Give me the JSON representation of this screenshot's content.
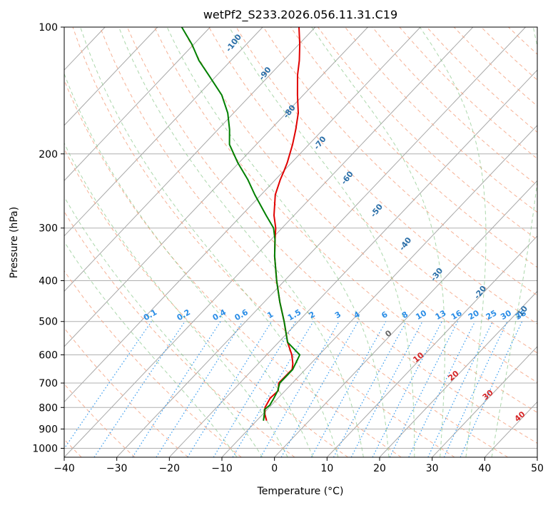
{
  "chart_data": {
    "type": "line",
    "title": "wetPf2_S233.2026.056.11.31.C19",
    "xlabel": "Temperature (°C)",
    "ylabel": "Pressure (hPa)",
    "xlim": [
      -40,
      50
    ],
    "ylim": [
      1050,
      100
    ],
    "x_ticks": [
      "−40",
      "−30",
      "−20",
      "−10",
      "0",
      "10",
      "20",
      "30",
      "40",
      "50"
    ],
    "x_tick_values": [
      -40,
      -30,
      -20,
      -10,
      0,
      10,
      20,
      30,
      40,
      50
    ],
    "y_ticks": [
      "100",
      "200",
      "300",
      "400",
      "500",
      "600",
      "700",
      "800",
      "900",
      "1000"
    ],
    "y_tick_values": [
      100,
      200,
      300,
      400,
      500,
      600,
      700,
      800,
      900,
      1000
    ],
    "mixing_ratio_labels": [
      "0.1",
      "0.2",
      "0.4",
      "0.6",
      "1",
      "1.5",
      "2",
      "3",
      "4",
      "6",
      "8",
      "10",
      "13",
      "16",
      "20",
      "25",
      "30",
      "36"
    ],
    "mixing_ratio_values": [
      0.1,
      0.2,
      0.4,
      0.6,
      1,
      1.5,
      2,
      3,
      4,
      6,
      8,
      10,
      13,
      16,
      20,
      25,
      30,
      36
    ],
    "moist_adiabat_labels": [
      "-100",
      "-90",
      "-80",
      "-70",
      "-60",
      "-50",
      "-40",
      "-30",
      "-20",
      "-10"
    ],
    "moist_adiabat_values": [
      -100,
      -90,
      -80,
      -70,
      -60,
      -50,
      -40,
      -30,
      -20,
      -10
    ],
    "moist_adiabat_label_pressure": [
      110,
      130,
      160,
      190,
      230,
      275,
      330,
      390,
      430,
      480
    ],
    "dry_adiabat_labels": [
      "0",
      "10",
      "20",
      "30",
      "40"
    ],
    "dry_adiabat_values": [
      0,
      10,
      20,
      30,
      40
    ],
    "dry_adiabat_label_pressure": [
      540,
      615,
      680,
      755,
      850
    ],
    "series": [
      {
        "name": "temperature",
        "color": "#e00000",
        "pressure": [
          860,
          830,
          800,
          760,
          730,
          700,
          650,
          630,
          600,
          560,
          500,
          450,
          400,
          350,
          320,
          300,
          280,
          250,
          230,
          220,
          210,
          190,
          175,
          160,
          145,
          130,
          120,
          110,
          100
        ],
        "temp": [
          -8.1,
          -9.6,
          -10.8,
          -11.5,
          -11.3,
          -12.6,
          -12.5,
          -13.4,
          -15.2,
          -18.3,
          -22.7,
          -27.0,
          -31.5,
          -36.3,
          -39.2,
          -41.2,
          -43.8,
          -47.3,
          -49.1,
          -49.9,
          -50.8,
          -53.1,
          -55.2,
          -57.7,
          -61.1,
          -64.7,
          -67.0,
          -69.8,
          -73.1
        ]
      },
      {
        "name": "dewpoint",
        "color": "#008000",
        "pressure": [
          860,
          830,
          810,
          790,
          760,
          730,
          700,
          650,
          600,
          560,
          500,
          450,
          400,
          350,
          320,
          300,
          280,
          250,
          230,
          210,
          190,
          175,
          160,
          145,
          130,
          120,
          110,
          100
        ],
        "temp": [
          -8.7,
          -9.7,
          -10.5,
          -10.3,
          -10.8,
          -11.4,
          -12.4,
          -12.4,
          -13.7,
          -18.3,
          -22.7,
          -27.0,
          -31.5,
          -36.3,
          -39.2,
          -41.6,
          -45.3,
          -51.2,
          -55.3,
          -60.2,
          -65.1,
          -67.8,
          -71.1,
          -75.5,
          -81.6,
          -86.1,
          -90.3,
          -95.4
        ]
      }
    ]
  }
}
